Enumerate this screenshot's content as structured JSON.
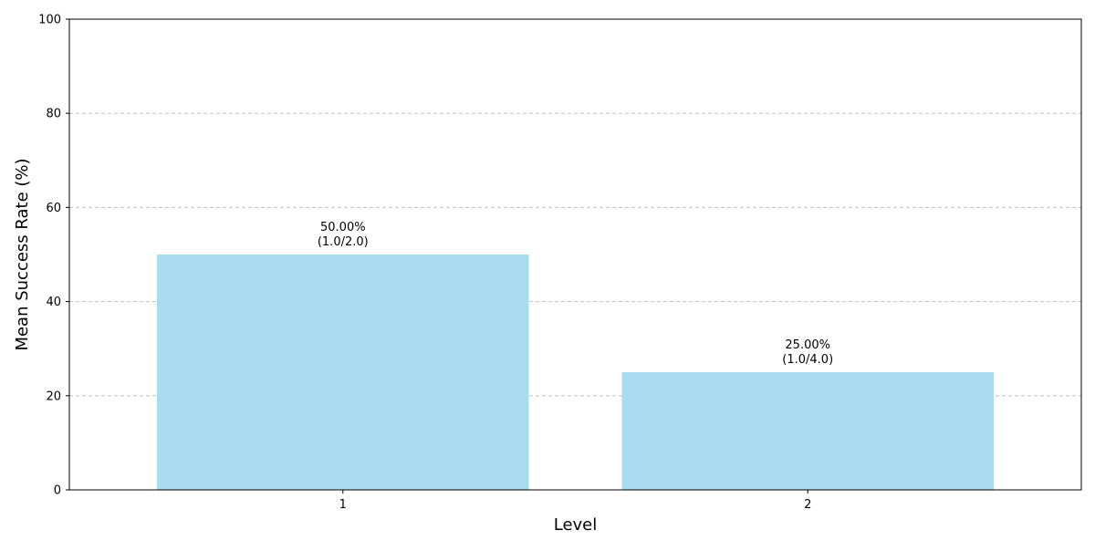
{
  "chart_data": {
    "type": "bar",
    "categories": [
      "1",
      "2"
    ],
    "values": [
      50.0,
      25.0
    ],
    "bar_labels": [
      [
        "50.00%",
        "(1.0/2.0)"
      ],
      [
        "25.00%",
        "(1.0/4.0)"
      ]
    ],
    "xlabel": "Level",
    "ylabel": "Mean Success Rate (%)",
    "ylim": [
      0,
      100
    ],
    "yticks": [
      0,
      20,
      40,
      60,
      80,
      100
    ],
    "grid": "y-dashed",
    "colors": {
      "bar": "#a8dcee",
      "grid": "#c0c0c0"
    }
  }
}
